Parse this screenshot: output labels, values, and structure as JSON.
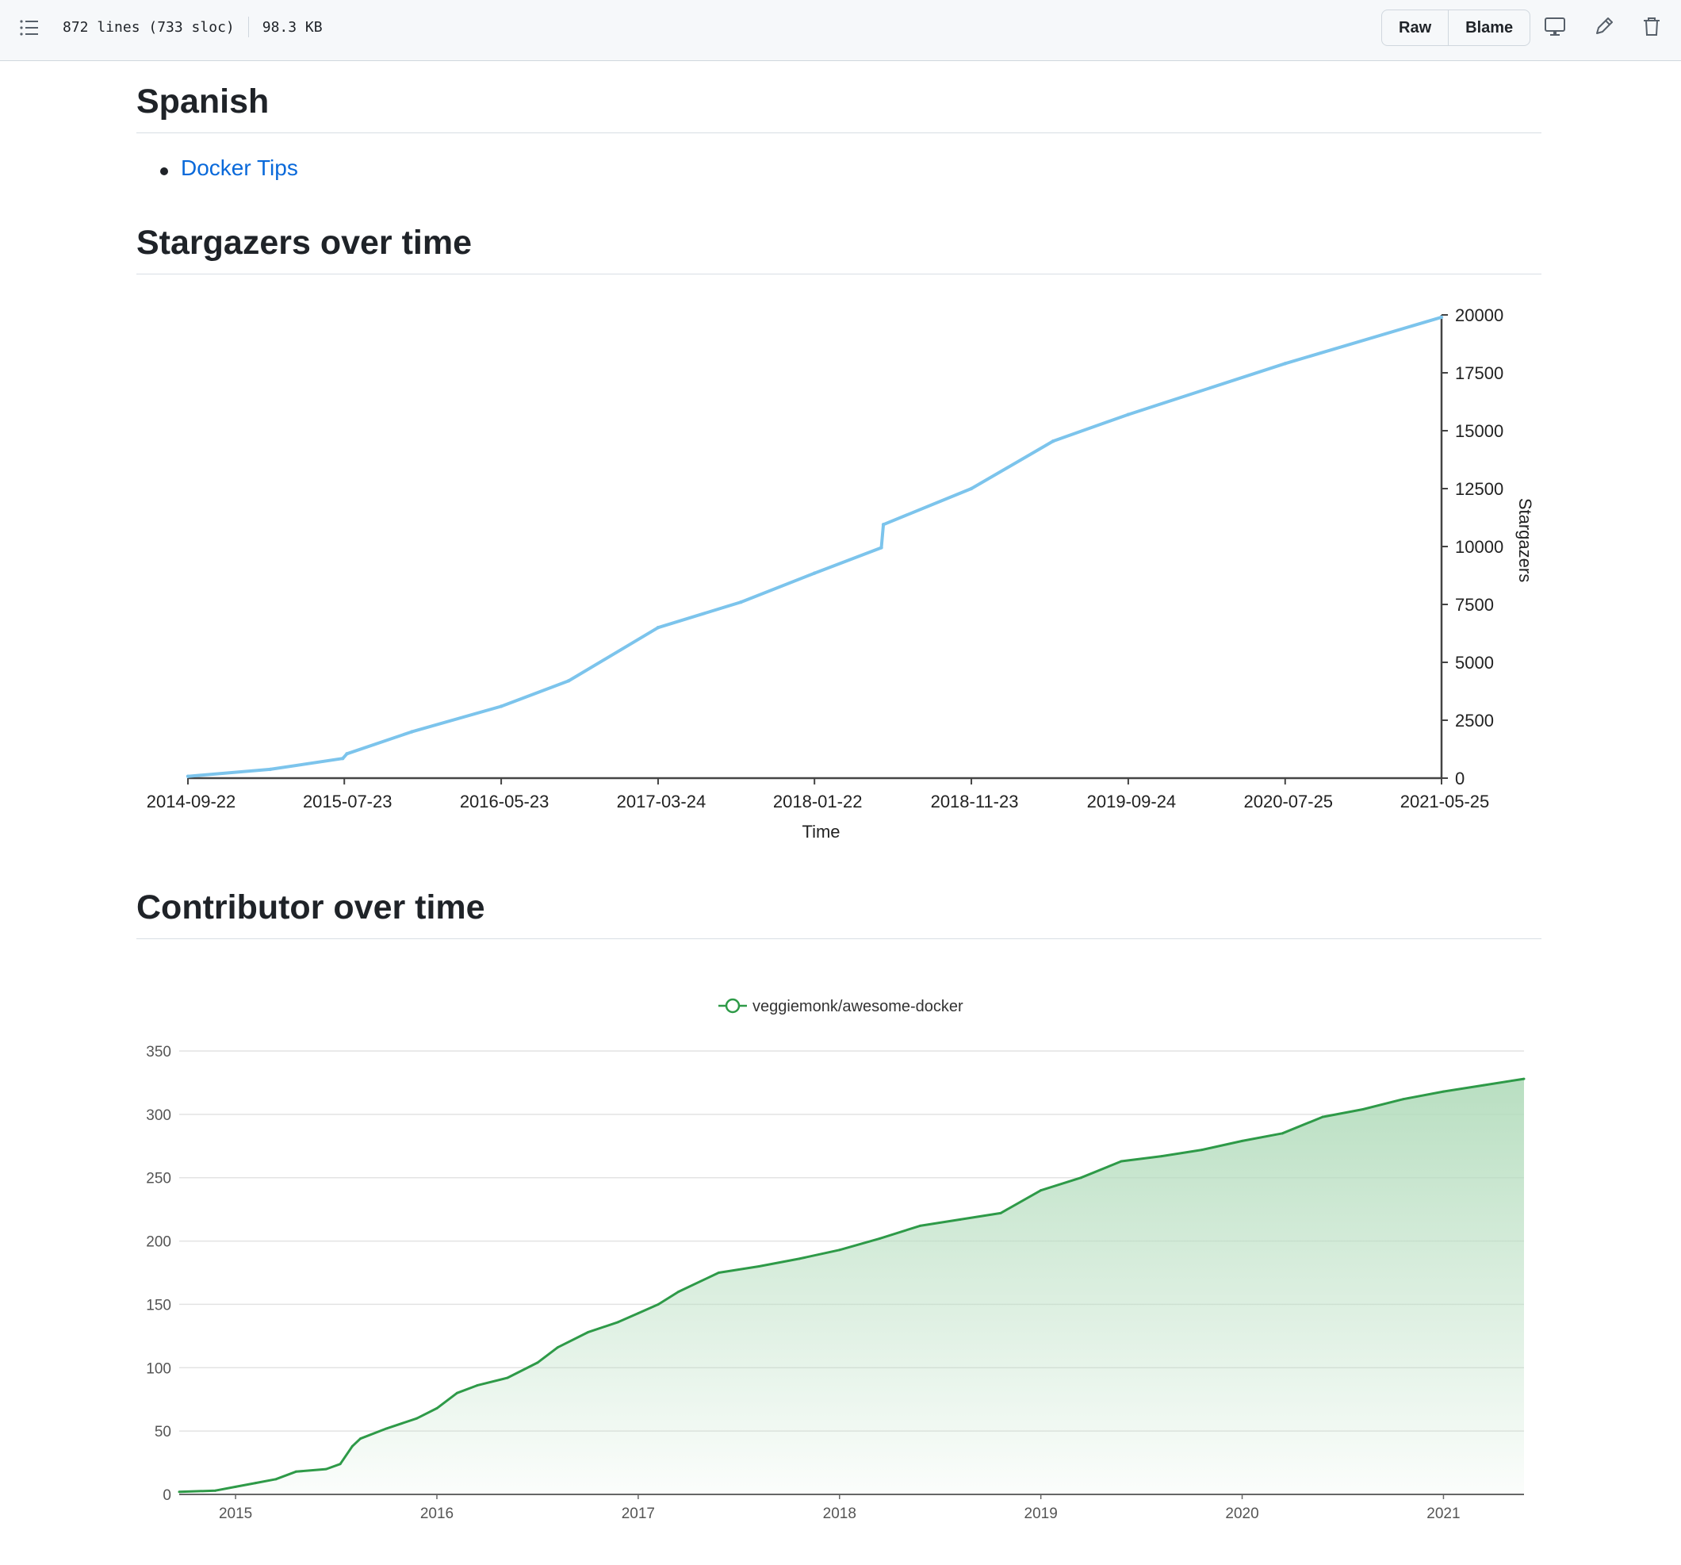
{
  "toolbar": {
    "lines": "872 lines (733 sloc)",
    "size": "98.3 KB",
    "raw_label": "Raw",
    "blame_label": "Blame"
  },
  "sections": {
    "spanish_heading": "Spanish",
    "spanish_links": [
      "Docker Tips"
    ],
    "stargazers_heading": "Stargazers over time",
    "contributor_heading": "Contributor over time"
  },
  "colors": {
    "stargazer_line": "#7cc4ec",
    "contributor_line": "#2e9a48",
    "contributor_fill": "#b5ddbe",
    "link": "#0969da"
  },
  "chart_data": [
    {
      "type": "line",
      "title": "",
      "xlabel": "Time",
      "ylabel": "Stargazers",
      "x_tick_labels": [
        "2014-09-22",
        "2015-07-23",
        "2016-05-23",
        "2017-03-24",
        "2018-01-22",
        "2018-11-23",
        "2019-09-24",
        "2020-07-25",
        "2021-05-25"
      ],
      "y_tick_labels": [
        "0",
        "2500",
        "5000",
        "7500",
        "10000",
        "12500",
        "15000",
        "17500",
        "20000"
      ],
      "ylim": [
        0,
        20000
      ],
      "x_range": [
        "2014-09-22",
        "2021-05-25"
      ],
      "y_axis_side": "right",
      "series": [
        {
          "x": [
            "2014-09-22",
            "2015-03-01",
            "2015-07-20",
            "2015-07-28",
            "2015-12-01",
            "2016-05-23",
            "2016-10-01",
            "2017-03-24",
            "2017-09-01",
            "2018-01-22",
            "2018-06-01",
            "2018-06-05",
            "2018-11-23",
            "2019-05-01",
            "2019-09-24",
            "2020-07-25",
            "2021-05-25"
          ],
          "y": [
            80,
            380,
            850,
            1050,
            2000,
            3100,
            4200,
            6500,
            7600,
            8850,
            9950,
            10950,
            12500,
            14550,
            15700,
            17900,
            19900
          ]
        }
      ]
    },
    {
      "type": "area",
      "title": "",
      "xlabel": "",
      "ylabel": "",
      "legend": [
        "veggiemonk/awesome-docker"
      ],
      "legend_position": "top-center",
      "x_tick_labels": [
        "2015",
        "2016",
        "2017",
        "2018",
        "2019",
        "2020",
        "2021"
      ],
      "y_tick_labels": [
        "0",
        "50",
        "100",
        "150",
        "200",
        "250",
        "300",
        "350"
      ],
      "ylim": [
        0,
        350
      ],
      "x_range": [
        2014.72,
        2021.4
      ],
      "grid": true,
      "series": [
        {
          "name": "veggiemonk/awesome-docker",
          "x": [
            2014.72,
            2014.9,
            2015.0,
            2015.1,
            2015.2,
            2015.3,
            2015.45,
            2015.52,
            2015.58,
            2015.62,
            2015.75,
            2015.9,
            2016.0,
            2016.1,
            2016.2,
            2016.35,
            2016.5,
            2016.6,
            2016.75,
            2016.9,
            2017.0,
            2017.1,
            2017.2,
            2017.4,
            2017.6,
            2017.8,
            2018.0,
            2018.2,
            2018.4,
            2018.6,
            2018.8,
            2019.0,
            2019.2,
            2019.4,
            2019.6,
            2019.8,
            2020.0,
            2020.2,
            2020.4,
            2020.6,
            2020.8,
            2021.0,
            2021.2,
            2021.4
          ],
          "values": [
            2,
            3,
            6,
            9,
            12,
            18,
            20,
            24,
            38,
            44,
            52,
            60,
            68,
            80,
            86,
            92,
            104,
            116,
            128,
            136,
            143,
            150,
            160,
            175,
            180,
            186,
            193,
            202,
            212,
            217,
            222,
            240,
            250,
            263,
            267,
            272,
            279,
            285,
            298,
            304,
            312,
            318,
            323,
            328
          ]
        }
      ]
    }
  ]
}
